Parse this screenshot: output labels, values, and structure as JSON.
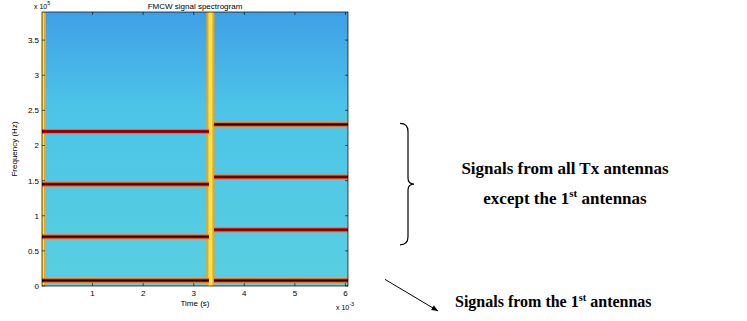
{
  "chart_data": {
    "type": "spectrogram",
    "title": "FMCW signal spectrogram",
    "x_label": "Time (s)",
    "y_label": "Frequency (Hz)",
    "x_multiplier": {
      "text": "x 10",
      "exponent": "-3"
    },
    "y_multiplier": {
      "text": "x 10",
      "exponent": "5"
    },
    "xlim": [
      0,
      6.05
    ],
    "xticks": [
      1,
      2,
      3,
      4,
      5,
      6
    ],
    "ylim": [
      0,
      3.9
    ],
    "yticks": [
      0,
      0.5,
      1,
      1.5,
      2,
      2.5,
      3,
      3.5
    ],
    "segments": [
      {
        "t_start": 0,
        "t_end": 3.3,
        "tones": [
          0.08,
          0.7,
          1.45,
          2.2
        ]
      },
      {
        "t_start": 3.4,
        "t_end": 6.05,
        "tones": [
          0.08,
          0.8,
          1.55,
          2.3
        ]
      }
    ],
    "transients": [
      0,
      3.33
    ],
    "annotations": [
      {
        "lines": [
          "Signals from all Tx antennas",
          "except the 1st antennas"
        ]
      },
      {
        "lines": [
          "Signals from the 1st antennas"
        ]
      }
    ]
  }
}
